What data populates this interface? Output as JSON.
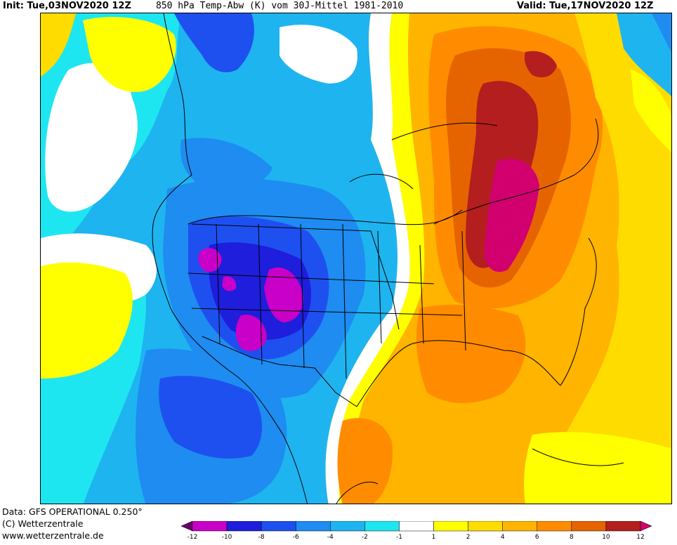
{
  "header": {
    "init": "Init: Tue,03NOV2020 12Z",
    "title": "850 hPa Temp-Abw (K) vom 30J-Mittel 1981-2010",
    "valid": "Valid: Tue,17NOV2020 12Z"
  },
  "footer": {
    "data_source": "Data: GFS OPERATIONAL 0.250°",
    "copyright": "(C) Wetterzentrale",
    "website": "www.wetterzentrale.de"
  },
  "legend": {
    "ticks": [
      "-12",
      "-10",
      "-8",
      "-6",
      "-4",
      "-2",
      "-1",
      "1",
      "2",
      "4",
      "6",
      "8",
      "10",
      "12"
    ],
    "colors": [
      "#6a006a",
      "#c800c8",
      "#1e1edc",
      "#1e50f0",
      "#1e8cf0",
      "#1eb4f0",
      "#1ee6f0",
      "#ffffff",
      "#ffff00",
      "#ffdc00",
      "#ffb400",
      "#ff8c00",
      "#e66400",
      "#b41e1e",
      "#d2006e"
    ]
  },
  "map": {
    "region": "North America",
    "variable": "850 hPa temperature anomaly (K)",
    "features": [
      "cold anomaly over western/central USA",
      "warm anomaly over eastern USA and Canada",
      "strongest warm anomaly over Great Lakes and Ontario",
      "strongest cold anomaly over Four Corners region"
    ]
  }
}
